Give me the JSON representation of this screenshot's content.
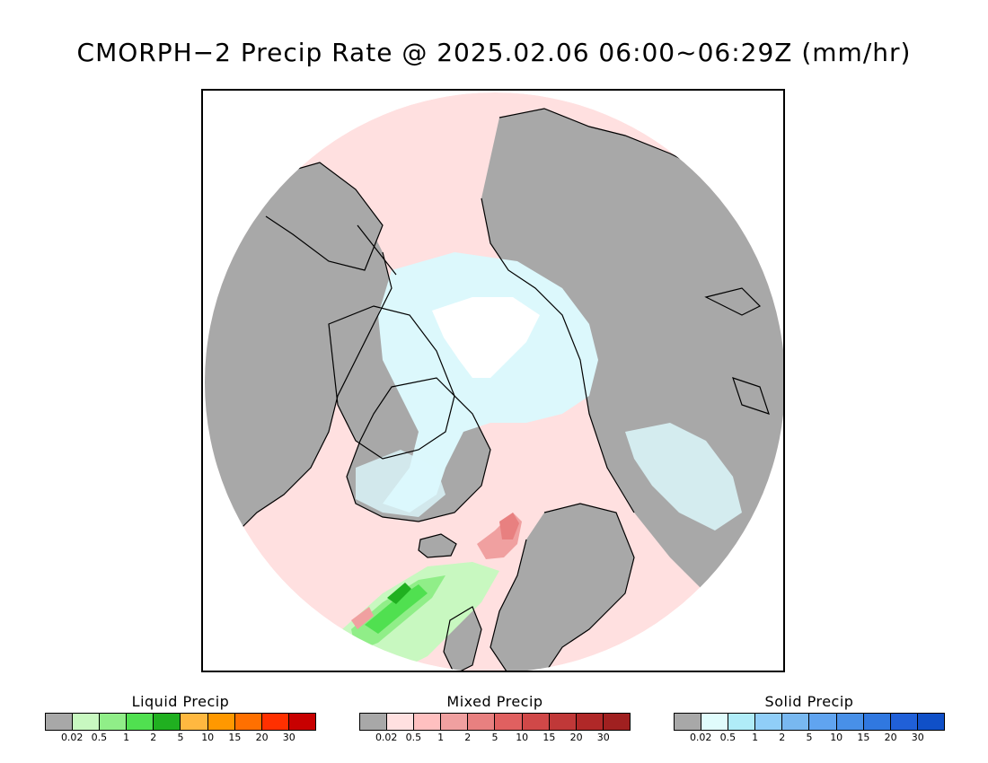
{
  "title": "CMORPH−2 Precip Rate @ 2025.02.06 06:00~06:29Z (mm/hr)",
  "map": {
    "colors": {
      "land_no_precip": "#a8a8a8",
      "ocean_light_mixed": "#ffe0e0",
      "light_solid": "#dcf8fc",
      "polar_gap": "#ffffff",
      "coastline": "#000000"
    }
  },
  "legends": [
    {
      "title": "Liquid Precip",
      "colors": [
        "#a8a8a8",
        "#c8f8c0",
        "#90ee88",
        "#50e050",
        "#20b020",
        "#ffb840",
        "#ff9800",
        "#ff7000",
        "#ff3000",
        "#c80000"
      ],
      "ticks": [
        "0.02",
        "0.5",
        "1",
        "2",
        "5",
        "10",
        "15",
        "20",
        "30"
      ]
    },
    {
      "title": "Mixed Precip",
      "colors": [
        "#a8a8a8",
        "#ffe0e0",
        "#ffc0c0",
        "#f0a0a0",
        "#e88080",
        "#e06060",
        "#d04848",
        "#c03838",
        "#b02828",
        "#a02020"
      ],
      "ticks": [
        "0.02",
        "0.5",
        "1",
        "2",
        "5",
        "10",
        "15",
        "20",
        "30"
      ]
    },
    {
      "title": "Solid Precip",
      "colors": [
        "#a8a8a8",
        "#e0fcfc",
        "#b0ecf8",
        "#90cef8",
        "#78b8f0",
        "#60a4f0",
        "#4890e8",
        "#3078e0",
        "#2060d8",
        "#1050c8"
      ],
      "ticks": [
        "0.02",
        "0.5",
        "1",
        "2",
        "5",
        "10",
        "15",
        "20",
        "30"
      ]
    }
  ]
}
